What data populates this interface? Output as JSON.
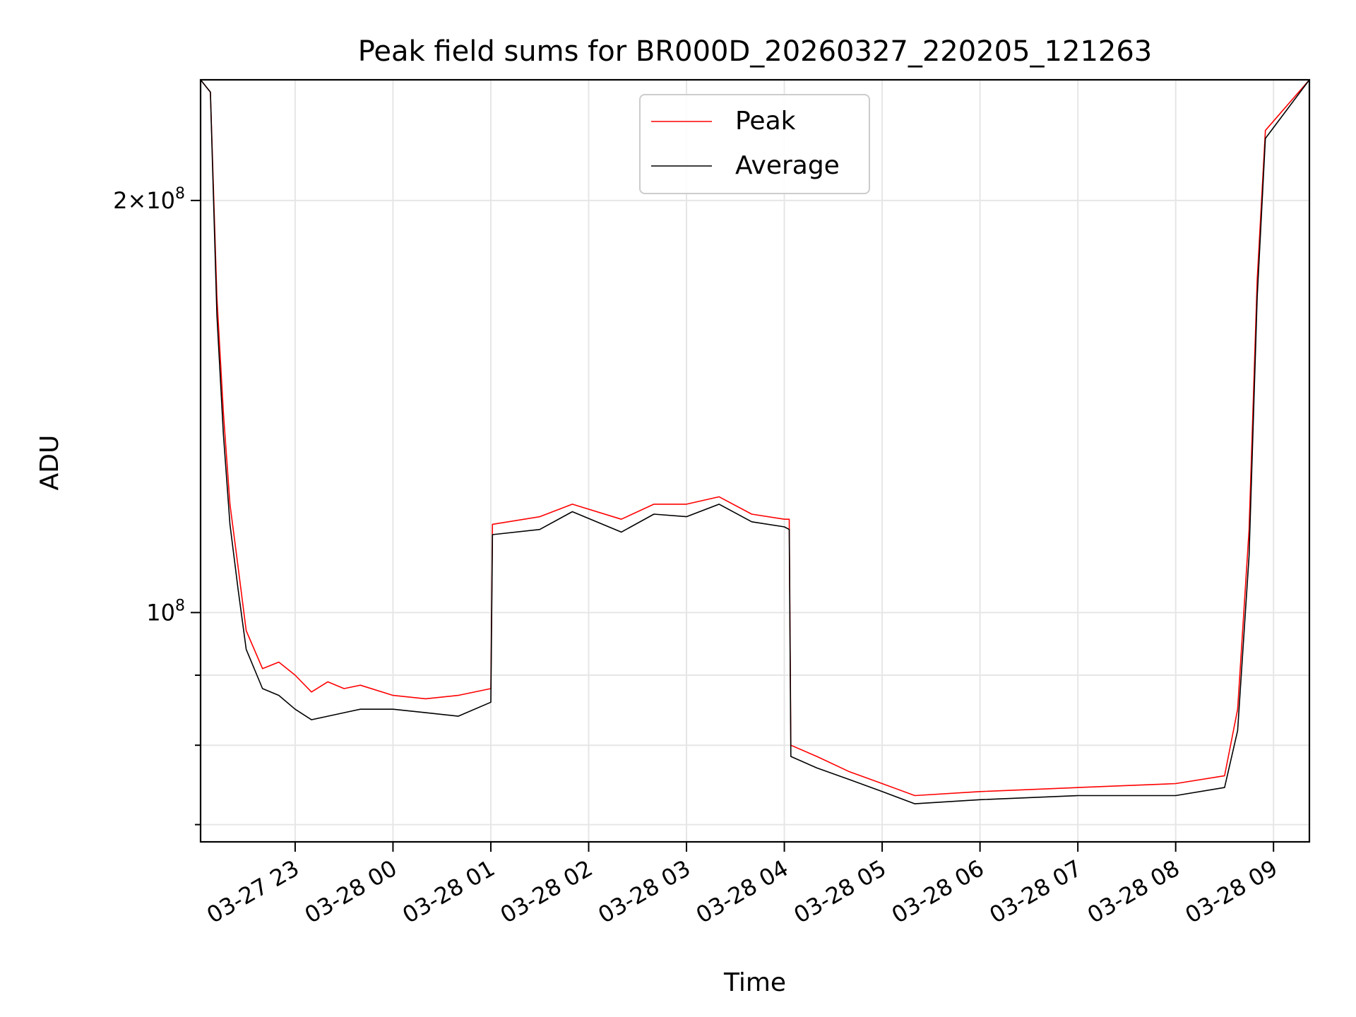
{
  "chart_data": {
    "type": "line",
    "title": "Peak field sums for BR000D_20260327_220205_121263",
    "xlabel": "Time",
    "ylabel": "ADU",
    "yscale": "log",
    "ylim": [
      68000000,
      245000000
    ],
    "xlim": [
      "2026-03-27 22:02",
      "2026-03-28 09:22"
    ],
    "grid": true,
    "legend_position": "upper center",
    "x_ticks": [
      {
        "t": "2026-03-27 23:00",
        "label": "03-27 23"
      },
      {
        "t": "2026-03-28 00:00",
        "label": "03-28 00"
      },
      {
        "t": "2026-03-28 01:00",
        "label": "03-28 01"
      },
      {
        "t": "2026-03-28 02:00",
        "label": "03-28 02"
      },
      {
        "t": "2026-03-28 03:00",
        "label": "03-28 03"
      },
      {
        "t": "2026-03-28 04:00",
        "label": "03-28 04"
      },
      {
        "t": "2026-03-28 05:00",
        "label": "03-28 05"
      },
      {
        "t": "2026-03-28 06:00",
        "label": "03-28 06"
      },
      {
        "t": "2026-03-28 07:00",
        "label": "03-28 07"
      },
      {
        "t": "2026-03-28 08:00",
        "label": "03-28 08"
      },
      {
        "t": "2026-03-28 09:00",
        "label": "03-28 09"
      }
    ],
    "y_major_ticks": [
      {
        "value": 100000000,
        "mantissa": "",
        "exponent": "8"
      },
      {
        "value": 200000000,
        "mantissa": "2",
        "exponent": "8"
      }
    ],
    "y_minor_ticks": [
      70000000,
      80000000,
      90000000
    ],
    "series": [
      {
        "name": "Peak",
        "color": "#ff0000",
        "points": [
          [
            "2026-03-27 22:02",
            245000000
          ],
          [
            "2026-03-27 22:08",
            240000000
          ],
          [
            "2026-03-27 22:12",
            170000000
          ],
          [
            "2026-03-27 22:16",
            140000000
          ],
          [
            "2026-03-27 22:20",
            120000000
          ],
          [
            "2026-03-27 22:25",
            108000000
          ],
          [
            "2026-03-27 22:30",
            97000000
          ],
          [
            "2026-03-27 22:40",
            91000000
          ],
          [
            "2026-03-27 22:50",
            92000000
          ],
          [
            "2026-03-27 23:00",
            90000000
          ],
          [
            "2026-03-27 23:10",
            87500000
          ],
          [
            "2026-03-27 23:20",
            89000000
          ],
          [
            "2026-03-27 23:30",
            88000000
          ],
          [
            "2026-03-27 23:40",
            88500000
          ],
          [
            "2026-03-28 00:00",
            87000000
          ],
          [
            "2026-03-28 00:20",
            86500000
          ],
          [
            "2026-03-28 00:40",
            87000000
          ],
          [
            "2026-03-28 01:00",
            88000000
          ],
          [
            "2026-03-28 01:01",
            116000000
          ],
          [
            "2026-03-28 01:30",
            117500000
          ],
          [
            "2026-03-28 01:50",
            120000000
          ],
          [
            "2026-03-28 02:20",
            117000000
          ],
          [
            "2026-03-28 02:40",
            120000000
          ],
          [
            "2026-03-28 03:00",
            120000000
          ],
          [
            "2026-03-28 03:20",
            121500000
          ],
          [
            "2026-03-28 03:40",
            118000000
          ],
          [
            "2026-03-28 04:00",
            117000000
          ],
          [
            "2026-03-28 04:03",
            117000000
          ],
          [
            "2026-03-28 04:04",
            80000000
          ],
          [
            "2026-03-28 04:20",
            78500000
          ],
          [
            "2026-03-28 04:40",
            76500000
          ],
          [
            "2026-03-28 05:00",
            75000000
          ],
          [
            "2026-03-28 05:20",
            73500000
          ],
          [
            "2026-03-28 06:00",
            74000000
          ],
          [
            "2026-03-28 07:00",
            74500000
          ],
          [
            "2026-03-28 08:00",
            75000000
          ],
          [
            "2026-03-28 08:30",
            76000000
          ],
          [
            "2026-03-28 08:38",
            85000000
          ],
          [
            "2026-03-28 08:45",
            115000000
          ],
          [
            "2026-03-28 08:50",
            175000000
          ],
          [
            "2026-03-28 08:55",
            225000000
          ],
          [
            "2026-03-28 09:22",
            245000000
          ]
        ]
      },
      {
        "name": "Average",
        "color": "#000000",
        "points": [
          [
            "2026-03-27 22:02",
            245000000
          ],
          [
            "2026-03-27 22:08",
            240000000
          ],
          [
            "2026-03-27 22:12",
            165000000
          ],
          [
            "2026-03-27 22:16",
            135000000
          ],
          [
            "2026-03-27 22:20",
            116000000
          ],
          [
            "2026-03-27 22:25",
            104000000
          ],
          [
            "2026-03-27 22:30",
            94000000
          ],
          [
            "2026-03-27 22:40",
            88000000
          ],
          [
            "2026-03-27 22:50",
            87000000
          ],
          [
            "2026-03-27 23:00",
            85000000
          ],
          [
            "2026-03-27 23:10",
            83500000
          ],
          [
            "2026-03-27 23:20",
            84000000
          ],
          [
            "2026-03-27 23:30",
            84500000
          ],
          [
            "2026-03-27 23:40",
            85000000
          ],
          [
            "2026-03-28 00:00",
            85000000
          ],
          [
            "2026-03-28 00:20",
            84500000
          ],
          [
            "2026-03-28 00:40",
            84000000
          ],
          [
            "2026-03-28 01:00",
            86000000
          ],
          [
            "2026-03-28 01:01",
            114000000
          ],
          [
            "2026-03-28 01:30",
            115000000
          ],
          [
            "2026-03-28 01:50",
            118500000
          ],
          [
            "2026-03-28 02:20",
            114500000
          ],
          [
            "2026-03-28 02:40",
            118000000
          ],
          [
            "2026-03-28 03:00",
            117500000
          ],
          [
            "2026-03-28 03:20",
            120000000
          ],
          [
            "2026-03-28 03:40",
            116500000
          ],
          [
            "2026-03-28 04:00",
            115500000
          ],
          [
            "2026-03-28 04:03",
            115000000
          ],
          [
            "2026-03-28 04:04",
            78500000
          ],
          [
            "2026-03-28 04:20",
            77000000
          ],
          [
            "2026-03-28 04:40",
            75500000
          ],
          [
            "2026-03-28 05:00",
            74000000
          ],
          [
            "2026-03-28 05:20",
            72500000
          ],
          [
            "2026-03-28 06:00",
            73000000
          ],
          [
            "2026-03-28 07:00",
            73500000
          ],
          [
            "2026-03-28 08:00",
            73500000
          ],
          [
            "2026-03-28 08:30",
            74500000
          ],
          [
            "2026-03-28 08:38",
            82000000
          ],
          [
            "2026-03-28 08:45",
            110000000
          ],
          [
            "2026-03-28 08:50",
            170000000
          ],
          [
            "2026-03-28 08:55",
            222000000
          ],
          [
            "2026-03-28 09:22",
            245000000
          ]
        ]
      }
    ]
  }
}
